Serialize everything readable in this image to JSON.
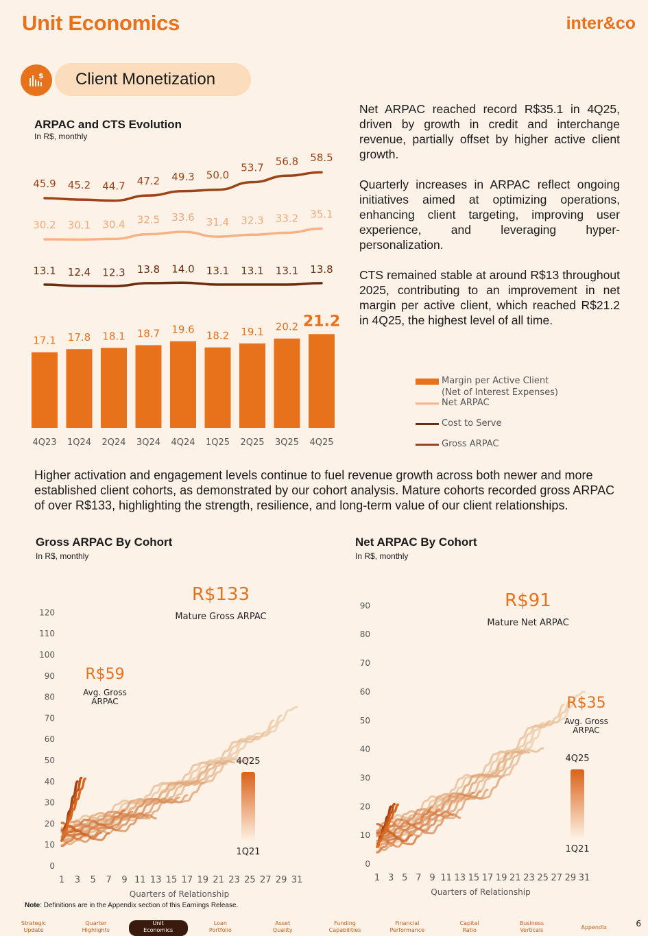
{
  "header": {
    "title": "Unit Economics",
    "logo": "inter&co"
  },
  "section": {
    "label": "Client Monetization",
    "icon": "dollar-bars-icon"
  },
  "top_chart_labels": {
    "title": "ARPAC and CTS Evolution",
    "subtitle": "In R$, monthly"
  },
  "paragraphs": {
    "p1": "Net ARPAC reached record R$35.1 in 4Q25, driven by growth in credit and interchange revenue, partially offset by higher active client growth.",
    "p2": "Quarterly increases in ARPAC reflect ongoing initiatives aimed at optimizing operations, enhancing client targeting, improving user experience, and leveraging hyper-personalization.",
    "p3": "CTS remained stable at around R$13 throughout 2025, contributing to an improvement in net margin per active client, which reached R$21.2 in 4Q25, the highest level of all time."
  },
  "legend": {
    "margin": "Margin per Active Client",
    "margin_sub": "(Net of Interest Expenses)",
    "net": "Net ARPAC",
    "cost": "Cost to Serve",
    "gross": "Gross ARPAC"
  },
  "body_text": "Higher activation and engagement levels continue to fuel revenue growth across both newer and more established client cohorts, as demonstrated by our cohort analysis. Mature cohorts recorded gross ARPAC of over R$133, highlighting the strength, resilience, and long-term value of our client relationships.",
  "gross_cohort_labels": {
    "title": "Gross ARPAC By Cohort",
    "subtitle": "In R$, monthly",
    "mature_value": "R$133",
    "mature_label": "Mature Gross ARPAC",
    "avg_value": "R$59",
    "avg_label": "Avg. Gross ARPAC",
    "legend_top": "4Q25",
    "legend_bottom": "1Q21",
    "xlabel": "Quarters of Relationship"
  },
  "net_cohort_labels": {
    "title": "Net ARPAC By Cohort",
    "subtitle": "In R$, monthly",
    "mature_value": "R$91",
    "mature_label": "Mature Net ARPAC",
    "avg_value": "R$35",
    "avg_label": "Avg. Gross ARPAC",
    "legend_top": "4Q25",
    "legend_bottom": "1Q21",
    "xlabel": "Quarters of Relationship"
  },
  "note": {
    "bold": "Note",
    "text": ": Definitions are in the Appendix section of this Earnings Release."
  },
  "footer": {
    "items": [
      "Strategic Update",
      "Quarter Highlights",
      "Unit Economics",
      "Loan Portfolio",
      "Asset Quality",
      "Funding Capabilities",
      "Financial Performance",
      "Capital Ratio",
      "Business Verticals",
      "Appendix"
    ],
    "active": "Unit Economics",
    "page": "6"
  },
  "colors": {
    "accent": "#e8711c",
    "net": "#f7b183",
    "cost": "#6b2d0f",
    "gross": "#9b4418",
    "bar": "#e8711c"
  },
  "chart_data": [
    {
      "type": "bar+line",
      "title": "ARPAC and CTS Evolution",
      "subtitle": "In R$, monthly",
      "categories": [
        "4Q23",
        "1Q24",
        "2Q24",
        "3Q24",
        "4Q24",
        "1Q25",
        "2Q25",
        "3Q25",
        "4Q25"
      ],
      "series": [
        {
          "name": "Gross ARPAC",
          "kind": "line",
          "values": [
            45.9,
            45.2,
            44.7,
            47.2,
            49.3,
            50.0,
            53.7,
            56.8,
            58.5
          ]
        },
        {
          "name": "Net ARPAC",
          "kind": "line",
          "values": [
            30.2,
            30.1,
            30.4,
            32.5,
            33.6,
            31.4,
            32.3,
            33.2,
            35.1
          ]
        },
        {
          "name": "Cost to Serve",
          "kind": "line",
          "values": [
            13.1,
            12.4,
            12.3,
            13.8,
            14.0,
            13.1,
            13.1,
            13.1,
            13.8
          ]
        },
        {
          "name": "Margin per Active Client (Net of Interest Expenses)",
          "kind": "bar",
          "values": [
            17.1,
            17.8,
            18.1,
            18.7,
            19.6,
            18.2,
            19.1,
            20.2,
            21.2
          ]
        }
      ]
    },
    {
      "type": "line",
      "title": "Gross ARPAC By Cohort",
      "xlabel": "Quarters of Relationship",
      "x_ticks": [
        1,
        3,
        5,
        7,
        9,
        11,
        13,
        15,
        17,
        19,
        21,
        23,
        25,
        27,
        29,
        31
      ],
      "y_ticks": [
        0,
        10,
        20,
        30,
        40,
        50,
        60,
        70,
        80,
        90,
        100,
        110,
        120
      ],
      "xlim": [
        1,
        31
      ],
      "ylim": [
        0,
        125
      ],
      "cohort_count": 20,
      "color_scale": [
        "4Q25",
        "1Q21"
      ]
    },
    {
      "type": "line",
      "title": "Net ARPAC By Cohort",
      "xlabel": "Quarters of Relationship",
      "x_ticks": [
        1,
        3,
        5,
        7,
        9,
        11,
        13,
        15,
        17,
        19,
        21,
        23,
        25,
        27,
        29,
        31
      ],
      "y_ticks": [
        0,
        10,
        20,
        30,
        40,
        50,
        60,
        70,
        80,
        90
      ],
      "xlim": [
        1,
        31
      ],
      "ylim": [
        0,
        92
      ],
      "cohort_count": 20,
      "color_scale": [
        "4Q25",
        "1Q21"
      ]
    }
  ]
}
